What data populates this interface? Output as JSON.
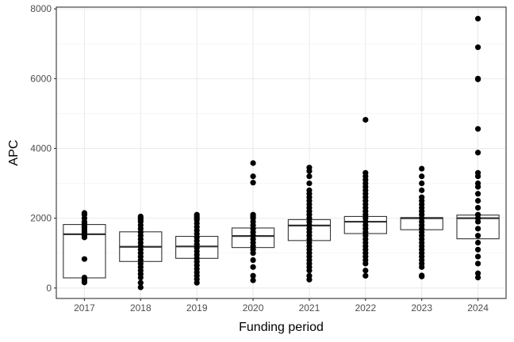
{
  "chart_data": {
    "type": "box",
    "title": "",
    "xlabel": "Funding period",
    "ylabel": "APC",
    "ylim": [
      -300,
      8050
    ],
    "yticks": [
      0,
      2000,
      4000,
      6000,
      8000
    ],
    "grid": true,
    "categories": [
      "2017",
      "2018",
      "2019",
      "2020",
      "2021",
      "2022",
      "2023",
      "2024"
    ],
    "boxes": [
      {
        "category": "2017",
        "q1": 290,
        "median": 1540,
        "q3": 1820
      },
      {
        "category": "2018",
        "q1": 760,
        "median": 1180,
        "q3": 1610
      },
      {
        "category": "2019",
        "q1": 850,
        "median": 1190,
        "q3": 1480
      },
      {
        "category": "2020",
        "q1": 1160,
        "median": 1490,
        "q3": 1720
      },
      {
        "category": "2021",
        "q1": 1360,
        "median": 1790,
        "q3": 1960
      },
      {
        "category": "2022",
        "q1": 1560,
        "median": 1900,
        "q3": 2050
      },
      {
        "category": "2023",
        "q1": 1670,
        "median": 2000,
        "q3": 2020
      },
      {
        "category": "2024",
        "q1": 1410,
        "median": 2000,
        "q3": 2090
      }
    ],
    "points": [
      {
        "category": "2017",
        "values": [
          160,
          200,
          250,
          300,
          830,
          1450,
          1500,
          1550,
          1600,
          1650,
          1700,
          1750,
          1800,
          1850,
          1900,
          2000,
          2100,
          2150
        ]
      },
      {
        "category": "2018",
        "values": [
          20,
          150,
          300,
          400,
          500,
          600,
          700,
          800,
          900,
          1000,
          1100,
          1200,
          1300,
          1400,
          1500,
          1600,
          1700,
          1800,
          1900,
          1950,
          2000,
          2050
        ]
      },
      {
        "category": "2019",
        "values": [
          150,
          250,
          350,
          450,
          550,
          650,
          750,
          850,
          950,
          1050,
          1150,
          1250,
          1350,
          1450,
          1550,
          1650,
          1750,
          1850,
          1950,
          2000,
          2050,
          2100
        ]
      },
      {
        "category": "2020",
        "values": [
          220,
          350,
          600,
          800,
          1000,
          1100,
          1200,
          1300,
          1400,
          1500,
          1600,
          1700,
          1800,
          1900,
          2000,
          2050,
          2100,
          3020,
          3200,
          3580
        ]
      },
      {
        "category": "2021",
        "values": [
          240,
          350,
          500,
          600,
          700,
          800,
          900,
          1000,
          1100,
          1200,
          1300,
          1400,
          1500,
          1600,
          1700,
          1800,
          1900,
          2000,
          2100,
          2200,
          2300,
          2400,
          2500,
          2600,
          2700,
          2800,
          3000,
          3200,
          3350,
          3450
        ]
      },
      {
        "category": "2022",
        "values": [
          350,
          500,
          700,
          800,
          900,
          1000,
          1100,
          1200,
          1300,
          1400,
          1500,
          1600,
          1700,
          1800,
          1900,
          2000,
          2100,
          2200,
          2300,
          2400,
          2500,
          2600,
          2700,
          2800,
          2900,
          3000,
          3100,
          3200,
          3300,
          4820
        ]
      },
      {
        "category": "2023",
        "values": [
          330,
          360,
          600,
          700,
          800,
          900,
          1000,
          1100,
          1200,
          1300,
          1400,
          1500,
          1600,
          1700,
          1800,
          1900,
          2000,
          2100,
          2200,
          2300,
          2400,
          2500,
          2600,
          2800,
          3000,
          3200,
          3420
        ]
      },
      {
        "category": "2024",
        "values": [
          300,
          420,
          700,
          900,
          1100,
          1300,
          1500,
          1700,
          1900,
          2000,
          2100,
          2300,
          2500,
          2700,
          2900,
          3000,
          3200,
          3300,
          3880,
          4560,
          5980,
          6000,
          6900,
          7720
        ]
      }
    ]
  }
}
